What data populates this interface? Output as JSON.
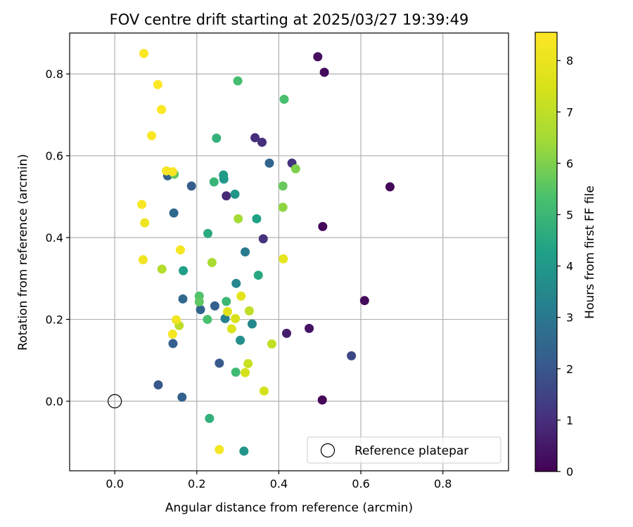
{
  "chart_data": {
    "type": "scatter",
    "title": "FOV centre drift starting at 2025/03/27 19:39:49",
    "xlabel": "Angular distance from reference (arcmin)",
    "ylabel": "Rotation from reference (arcmin)",
    "xlim": [
      -0.11,
      0.96
    ],
    "ylim": [
      -0.17,
      0.9
    ],
    "x_ticks": [
      "0.0",
      "0.2",
      "0.4",
      "0.6",
      "0.8"
    ],
    "x_tick_values": [
      0.0,
      0.2,
      0.4,
      0.6,
      0.8
    ],
    "y_ticks": [
      "0.0",
      "0.2",
      "0.4",
      "0.6",
      "0.8"
    ],
    "y_tick_values": [
      0.0,
      0.2,
      0.4,
      0.6,
      0.8
    ],
    "grid": true,
    "colorbar": {
      "label": "Hours from first FF file",
      "min": 0,
      "max": 8.55,
      "ticks": [
        "0",
        "1",
        "2",
        "3",
        "4",
        "5",
        "6",
        "7",
        "8"
      ],
      "tick_values": [
        0,
        1,
        2,
        3,
        4,
        5,
        6,
        7,
        8
      ],
      "colormap": "viridis"
    },
    "legend": {
      "position": "lower-right",
      "entries": [
        {
          "label": "Reference platepar",
          "marker": "hollow-circle"
        }
      ]
    },
    "reference_point": {
      "x": 0.0,
      "y": 0.0
    },
    "points": [
      {
        "x": 0.495,
        "y": 0.842,
        "t": 0.3
      },
      {
        "x": 0.511,
        "y": 0.804,
        "t": 0.2
      },
      {
        "x": 0.671,
        "y": 0.524,
        "t": 0.1
      },
      {
        "x": 0.507,
        "y": 0.427,
        "t": 0.2
      },
      {
        "x": 0.609,
        "y": 0.246,
        "t": 0.2
      },
      {
        "x": 0.506,
        "y": 0.003,
        "t": 0.1
      },
      {
        "x": 0.474,
        "y": 0.178,
        "t": 0.4
      },
      {
        "x": 0.419,
        "y": 0.166,
        "t": 0.6
      },
      {
        "x": 0.362,
        "y": 0.397,
        "t": 1.1
      },
      {
        "x": 0.342,
        "y": 0.644,
        "t": 1.0
      },
      {
        "x": 0.359,
        "y": 0.633,
        "t": 1.0
      },
      {
        "x": 0.432,
        "y": 0.582,
        "t": 1.1
      },
      {
        "x": 0.272,
        "y": 0.502,
        "t": 0.9
      },
      {
        "x": 0.577,
        "y": 0.111,
        "t": 1.6
      },
      {
        "x": 0.377,
        "y": 0.582,
        "t": 2.4
      },
      {
        "x": 0.187,
        "y": 0.526,
        "t": 2.2
      },
      {
        "x": 0.129,
        "y": 0.551,
        "t": 2.3
      },
      {
        "x": 0.144,
        "y": 0.46,
        "t": 2.5
      },
      {
        "x": 0.166,
        "y": 0.25,
        "t": 2.5
      },
      {
        "x": 0.209,
        "y": 0.224,
        "t": 2.4
      },
      {
        "x": 0.244,
        "y": 0.233,
        "t": 2.3
      },
      {
        "x": 0.142,
        "y": 0.141,
        "t": 2.3
      },
      {
        "x": 0.255,
        "y": 0.093,
        "t": 2.1
      },
      {
        "x": 0.106,
        "y": 0.04,
        "t": 2.0
      },
      {
        "x": 0.164,
        "y": 0.01,
        "t": 2.3
      },
      {
        "x": 0.318,
        "y": 0.365,
        "t": 3.1
      },
      {
        "x": 0.296,
        "y": 0.288,
        "t": 3.4
      },
      {
        "x": 0.335,
        "y": 0.189,
        "t": 3.5
      },
      {
        "x": 0.306,
        "y": 0.149,
        "t": 3.7
      },
      {
        "x": 0.269,
        "y": 0.202,
        "t": 3.3
      },
      {
        "x": 0.315,
        "y": -0.122,
        "t": 3.9
      },
      {
        "x": 0.293,
        "y": 0.506,
        "t": 3.9
      },
      {
        "x": 0.266,
        "y": 0.543,
        "t": 4.0
      },
      {
        "x": 0.265,
        "y": 0.553,
        "t": 4.1
      },
      {
        "x": 0.167,
        "y": 0.319,
        "t": 4.2
      },
      {
        "x": 0.35,
        "y": 0.308,
        "t": 4.5
      },
      {
        "x": 0.346,
        "y": 0.446,
        "t": 4.3
      },
      {
        "x": 0.227,
        "y": 0.41,
        "t": 4.6
      },
      {
        "x": 0.242,
        "y": 0.536,
        "t": 4.9
      },
      {
        "x": 0.248,
        "y": 0.643,
        "t": 4.8
      },
      {
        "x": 0.3,
        "y": 0.783,
        "t": 5.2
      },
      {
        "x": 0.413,
        "y": 0.738,
        "t": 5.3
      },
      {
        "x": 0.272,
        "y": 0.244,
        "t": 5.0
      },
      {
        "x": 0.231,
        "y": -0.042,
        "t": 4.8
      },
      {
        "x": 0.295,
        "y": 0.071,
        "t": 5.1
      },
      {
        "x": 0.226,
        "y": 0.2,
        "t": 5.3
      },
      {
        "x": 0.206,
        "y": 0.257,
        "t": 5.4
      },
      {
        "x": 0.206,
        "y": 0.243,
        "t": 5.6
      },
      {
        "x": 0.145,
        "y": 0.555,
        "t": 5.6
      },
      {
        "x": 0.41,
        "y": 0.526,
        "t": 5.7
      },
      {
        "x": 0.441,
        "y": 0.568,
        "t": 6.0
      },
      {
        "x": 0.41,
        "y": 0.474,
        "t": 6.2
      },
      {
        "x": 0.301,
        "y": 0.446,
        "t": 6.5
      },
      {
        "x": 0.237,
        "y": 0.339,
        "t": 6.6
      },
      {
        "x": 0.115,
        "y": 0.323,
        "t": 6.8
      },
      {
        "x": 0.157,
        "y": 0.185,
        "t": 6.9
      },
      {
        "x": 0.328,
        "y": 0.221,
        "t": 7.0
      },
      {
        "x": 0.383,
        "y": 0.14,
        "t": 7.1
      },
      {
        "x": 0.325,
        "y": 0.092,
        "t": 7.2
      },
      {
        "x": 0.318,
        "y": 0.07,
        "t": 7.4
      },
      {
        "x": 0.364,
        "y": 0.025,
        "t": 7.4
      },
      {
        "x": 0.294,
        "y": 0.202,
        "t": 7.5
      },
      {
        "x": 0.285,
        "y": 0.177,
        "t": 7.6
      },
      {
        "x": 0.275,
        "y": 0.219,
        "t": 7.7
      },
      {
        "x": 0.308,
        "y": 0.257,
        "t": 7.8
      },
      {
        "x": 0.411,
        "y": 0.348,
        "t": 7.9
      },
      {
        "x": 0.073,
        "y": 0.436,
        "t": 8.1
      },
      {
        "x": 0.069,
        "y": 0.346,
        "t": 8.2
      },
      {
        "x": 0.16,
        "y": 0.37,
        "t": 8.3
      },
      {
        "x": 0.15,
        "y": 0.199,
        "t": 8.2
      },
      {
        "x": 0.141,
        "y": 0.164,
        "t": 8.3
      },
      {
        "x": 0.255,
        "y": -0.118,
        "t": 8.3
      },
      {
        "x": 0.066,
        "y": 0.481,
        "t": 8.4
      },
      {
        "x": 0.126,
        "y": 0.563,
        "t": 8.4
      },
      {
        "x": 0.141,
        "y": 0.561,
        "t": 8.4
      },
      {
        "x": 0.09,
        "y": 0.649,
        "t": 8.5
      },
      {
        "x": 0.114,
        "y": 0.713,
        "t": 8.5
      },
      {
        "x": 0.105,
        "y": 0.774,
        "t": 8.5
      },
      {
        "x": 0.071,
        "y": 0.85,
        "t": 8.5
      }
    ]
  }
}
